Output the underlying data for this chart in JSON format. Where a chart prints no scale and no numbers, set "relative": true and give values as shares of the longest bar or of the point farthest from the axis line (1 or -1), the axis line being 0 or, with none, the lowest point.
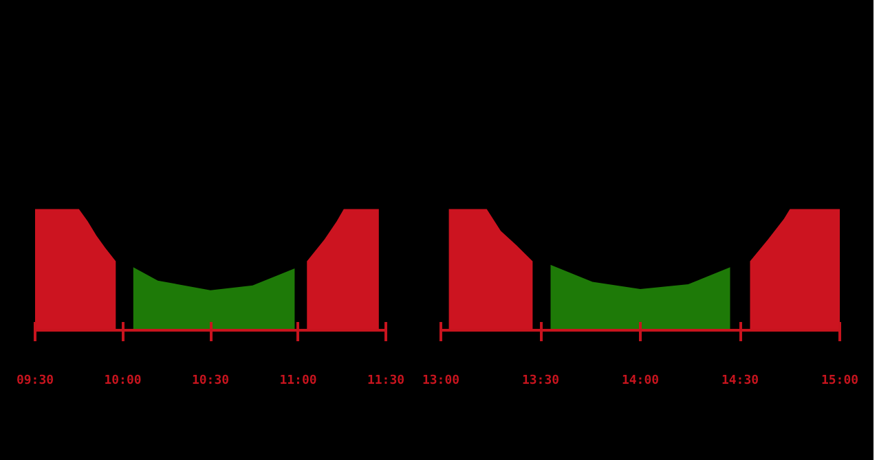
{
  "chart_data": [
    {
      "type": "area",
      "relative": true,
      "xlim": [
        9.5,
        11.5
      ],
      "xticks": [
        {
          "value": 9.5,
          "label": "09:30"
        },
        {
          "value": 10,
          "label": "10:00"
        },
        {
          "value": 10.5,
          "label": "10:30"
        },
        {
          "value": 11,
          "label": "11:00"
        },
        {
          "value": 11.5,
          "label": "11:30"
        }
      ],
      "grid": false,
      "series": [
        {
          "color": "#cc1420",
          "x": [
            9.5,
            9.75,
            9.8,
            9.85,
            9.9,
            9.96
          ],
          "values": [
            1,
            1,
            0.9,
            0.78,
            0.68,
            0.57
          ]
        },
        {
          "color": "#1e7a08",
          "x": [
            10.06,
            10.2,
            10.5,
            10.74,
            10.98
          ],
          "values": [
            0.52,
            0.41,
            0.33,
            0.37,
            0.51
          ]
        },
        {
          "color": "#cc1420",
          "x": [
            11.05,
            11.15,
            11.22,
            11.26,
            11.46
          ],
          "values": [
            0.57,
            0.75,
            0.9,
            1,
            1
          ]
        }
      ]
    },
    {
      "type": "area",
      "relative": true,
      "xlim": [
        13,
        15
      ],
      "xticks": [
        {
          "value": 13,
          "label": "13:00"
        },
        {
          "value": 13.5,
          "label": "13:30"
        },
        {
          "value": 14,
          "label": "14:00"
        },
        {
          "value": 14.5,
          "label": "14:30"
        },
        {
          "value": 15,
          "label": "15:00"
        }
      ],
      "grid": false,
      "series": [
        {
          "color": "#cc1420",
          "x": [
            13.04,
            13.23,
            13.3,
            13.38,
            13.46
          ],
          "values": [
            1,
            1,
            0.82,
            0.7,
            0.57
          ]
        },
        {
          "color": "#1e7a08",
          "x": [
            13.55,
            13.76,
            14.0,
            14.24,
            14.45
          ],
          "values": [
            0.54,
            0.4,
            0.34,
            0.38,
            0.52
          ]
        },
        {
          "color": "#cc1420",
          "x": [
            14.55,
            14.64,
            14.72,
            14.75,
            15
          ],
          "values": [
            0.57,
            0.75,
            0.92,
            1,
            1
          ]
        }
      ]
    }
  ]
}
